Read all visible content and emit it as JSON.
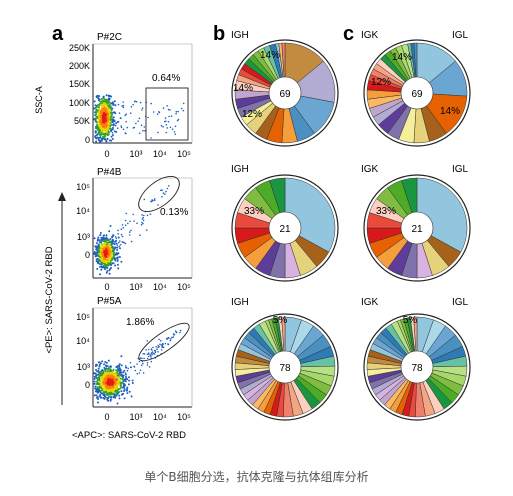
{
  "caption": "单个B细胞分选，抗体克隆与抗体组库分析",
  "panels": {
    "a": {
      "letter": "a",
      "y_axis_label": "<PE>: SARS-CoV-2 RBD",
      "x_axis_label": "<APC>: SARS-CoV-2 RBD",
      "top_plot": {
        "title": "P#2C",
        "ylabel": "SSC-A",
        "y_ticks": [
          "250K",
          "200K",
          "150K",
          "100K",
          "50K",
          "0"
        ],
        "x_ticks": [
          "0",
          "10³",
          "10⁴",
          "10⁵"
        ],
        "gate_percent": "0.64%"
      },
      "mid_plot": {
        "title": "P#4B",
        "y_ticks": [
          "10⁵",
          "10⁴",
          "10³",
          "0"
        ],
        "x_ticks": [
          "0",
          "10³",
          "10⁴",
          "10⁵"
        ],
        "gate_percent": "0.13%"
      },
      "bottom_plot": {
        "title": "P#5A",
        "y_ticks": [
          "10⁵",
          "10⁴",
          "10³",
          "0"
        ],
        "x_ticks": [
          "0",
          "10³",
          "10⁴",
          "10⁵"
        ],
        "gate_percent": "1.86%"
      }
    },
    "b": {
      "letter": "b",
      "donuts": [
        {
          "label": "IGH",
          "center": "69",
          "largest_labels": [
            "14%",
            "14%",
            "12%"
          ]
        },
        {
          "label": "IGH",
          "center": "21",
          "largest_labels": [
            "33%"
          ]
        },
        {
          "label": "IGH",
          "center": "78",
          "largest_labels": [
            "5%"
          ]
        }
      ]
    },
    "c": {
      "letter": "c",
      "donuts": [
        {
          "left_label": "IGK",
          "right_label": "IGL",
          "center": "69",
          "largest_labels": [
            "14%",
            "12%",
            "14%"
          ]
        },
        {
          "left_label": "IGK",
          "right_label": "IGL",
          "center": "21",
          "largest_labels": [
            "33%"
          ]
        },
        {
          "left_label": "IGK",
          "right_label": "IGL",
          "center": "78",
          "largest_labels": [
            "5%"
          ]
        }
      ]
    }
  },
  "chart_data": [
    {
      "type": "pie",
      "panel": "b-1",
      "label": "IGH",
      "center_value": 69,
      "values": [
        14,
        14,
        12,
        6,
        5,
        5,
        4,
        4,
        3,
        3,
        3,
        3,
        3,
        2,
        2,
        2,
        2,
        2,
        2,
        2,
        2,
        2,
        1,
        1,
        1
      ],
      "annotated": [
        "14%",
        "14%",
        "12%"
      ]
    },
    {
      "type": "pie",
      "panel": "b-2",
      "label": "IGH",
      "center_value": 21,
      "values": [
        33,
        6,
        6,
        5,
        5,
        5,
        5,
        5,
        5,
        5,
        5,
        5,
        5,
        5
      ],
      "annotated": [
        "33%"
      ]
    },
    {
      "type": "pie",
      "panel": "b-3",
      "label": "IGH",
      "center_value": 78,
      "values": [
        5,
        4,
        4,
        4,
        3,
        3,
        3,
        3,
        3,
        3,
        3,
        3,
        3,
        3,
        2,
        2,
        2,
        2,
        2,
        2,
        2,
        2,
        2,
        2,
        2,
        2,
        2,
        2,
        2,
        2,
        2,
        2,
        2,
        2,
        1,
        1,
        1,
        1,
        1,
        1
      ],
      "annotated": [
        "5%"
      ]
    },
    {
      "type": "pie",
      "panel": "c-1",
      "label": "IGK / IGL",
      "center_value": 69,
      "values": [
        14,
        12,
        14,
        6,
        5,
        5,
        4,
        4,
        3,
        3,
        3,
        3,
        3,
        2,
        2,
        2,
        2,
        2,
        2,
        2,
        2,
        2,
        1,
        1,
        1
      ],
      "annotated": [
        "14%",
        "12%",
        "14%"
      ]
    },
    {
      "type": "pie",
      "panel": "c-2",
      "label": "IGK / IGL",
      "center_value": 21,
      "values": [
        33,
        6,
        6,
        5,
        5,
        5,
        5,
        5,
        5,
        5,
        5,
        5,
        5,
        5
      ],
      "annotated": [
        "33%"
      ]
    },
    {
      "type": "pie",
      "panel": "c-3",
      "label": "IGK / IGL",
      "center_value": 78,
      "values": [
        5,
        4,
        4,
        4,
        3,
        3,
        3,
        3,
        3,
        3,
        3,
        3,
        3,
        3,
        2,
        2,
        2,
        2,
        2,
        2,
        2,
        2,
        2,
        2,
        2,
        2,
        2,
        2,
        2,
        2,
        2,
        2,
        2,
        2,
        1,
        1,
        1,
        1,
        1,
        1
      ],
      "annotated": [
        "5%"
      ]
    },
    {
      "type": "scatter",
      "panel": "a-top",
      "xlabel": "",
      "ylabel": "SSC-A",
      "gate": "0.64%"
    },
    {
      "type": "scatter",
      "panel": "a-mid",
      "gate": "0.13%"
    },
    {
      "type": "scatter",
      "panel": "a-bottom",
      "gate": "1.86%"
    }
  ],
  "palette": [
    "#a6611a",
    "#c38b3f",
    "#e7d27c",
    "#f5ef9a",
    "#5e3c99",
    "#8073ac",
    "#b2abd2",
    "#d8b2e0",
    "#c2a5cf",
    "#fdb863",
    "#f59e3b",
    "#e66101",
    "#d7191c",
    "#e84a3c",
    "#f27f6b",
    "#f4a582",
    "#fbd0c0",
    "#1a9641",
    "#4dac26",
    "#7fbc41",
    "#a6d96a",
    "#b8e186",
    "#66c2a5",
    "#2c7bb6",
    "#4a90c0",
    "#6ba6d3",
    "#92c5de",
    "#abd9e9"
  ]
}
